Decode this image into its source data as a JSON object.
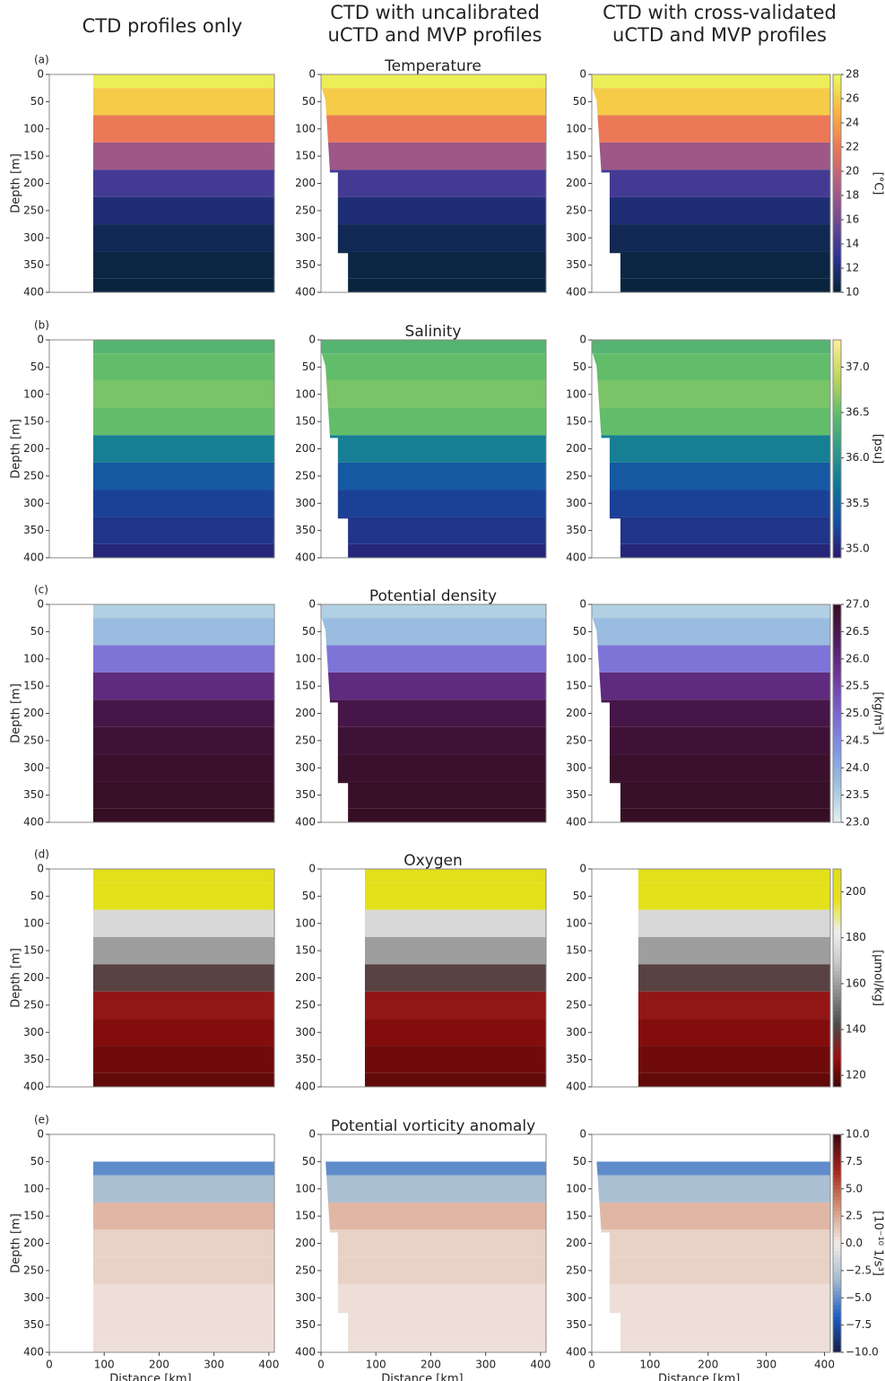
{
  "column_titles": [
    "CTD profiles only",
    "CTD with uncalibrated uCTD and MVP profiles",
    "CTD with cross-validated uCTD and MVP profiles"
  ],
  "chart_data": [
    {
      "type": "heatmap",
      "panel_label": "(a)",
      "title": "Temperature",
      "ylabel": "Depth [m]",
      "colorbar_label": "[°C]",
      "xlim": [
        0,
        410
      ],
      "xticks": [
        0,
        100,
        200,
        300,
        400
      ],
      "ylim": [
        0,
        400
      ],
      "yticks": [
        0,
        50,
        100,
        150,
        200,
        250,
        300,
        350,
        400
      ],
      "clim": [
        10,
        28
      ],
      "cticks": [
        10,
        12,
        14,
        16,
        18,
        20,
        22,
        24,
        26,
        28
      ],
      "colors": [
        "#042333",
        "#2c3395",
        "#744992",
        "#b15f82",
        "#eb7958",
        "#fbb43d",
        "#e8fa5b"
      ],
      "depths": [
        0,
        50,
        100,
        150,
        200,
        250,
        300,
        350,
        400
      ],
      "values": [
        27.5,
        26,
        22,
        18,
        14,
        12,
        11,
        10.5,
        10.3
      ]
    },
    {
      "type": "heatmap",
      "panel_label": "(b)",
      "title": "Salinity",
      "ylabel": "Depth [m]",
      "colorbar_label": "[psu]",
      "xlim": [
        0,
        410
      ],
      "xticks": [
        0,
        100,
        200,
        300,
        400
      ],
      "ylim": [
        0,
        400
      ],
      "yticks": [
        0,
        50,
        100,
        150,
        200,
        250,
        300,
        350,
        400
      ],
      "clim": [
        34.9,
        37.3
      ],
      "cticks": [
        {
          "value": 35.0,
          "label": "35.0"
        },
        35.5,
        {
          "value": 36.0,
          "label": "36.0"
        },
        36.5,
        {
          "value": 37.0,
          "label": "37.0"
        }
      ],
      "colors": [
        "#2a186c",
        "#164fa5",
        "#0f7696",
        "#319a8b",
        "#62bd6a",
        "#c1d65c",
        "#fdee99"
      ],
      "depths": [
        0,
        50,
        100,
        150,
        200,
        250,
        300,
        350,
        400
      ],
      "values": [
        36.4,
        36.5,
        36.6,
        36.5,
        35.8,
        35.4,
        35.2,
        35.1,
        35.0
      ]
    },
    {
      "type": "heatmap",
      "panel_label": "(c)",
      "title": "Potential density",
      "ylabel": "Depth [m]",
      "colorbar_label": "[kg/m³]",
      "xlim": [
        0,
        410
      ],
      "xticks": [
        0,
        100,
        200,
        300,
        400
      ],
      "ylim": [
        0,
        400
      ],
      "yticks": [
        0,
        50,
        100,
        150,
        200,
        250,
        300,
        350,
        400
      ],
      "clim": [
        23,
        27
      ],
      "cticks": [
        {
          "value": 23,
          "label": "23.0"
        },
        23.5,
        {
          "value": 24,
          "label": "24.0"
        },
        24.5,
        {
          "value": 25,
          "label": "25.0"
        },
        25.5,
        {
          "value": 26,
          "label": "26.0"
        },
        26.5,
        {
          "value": 27,
          "label": "27.0"
        }
      ],
      "colors": [
        "#e6f1f1",
        "#a0c5de",
        "#7e96e6",
        "#7d65d1",
        "#6f3a9e",
        "#4f1c5f",
        "#360e24"
      ],
      "depths": [
        0,
        50,
        100,
        150,
        200,
        250,
        300,
        350,
        400
      ],
      "values": [
        23.5,
        23.8,
        24.8,
        26.0,
        26.6,
        26.8,
        26.9,
        26.95,
        27.0
      ]
    },
    {
      "type": "heatmap",
      "panel_label": "(d)",
      "title": "Oxygen",
      "ylabel": "Depth [m]",
      "colorbar_label": "[µmol/kg]",
      "xlim": [
        0,
        410
      ],
      "xticks": [
        0,
        100,
        200,
        300,
        400
      ],
      "ylim": [
        0,
        400
      ],
      "yticks": [
        0,
        50,
        100,
        150,
        200,
        250,
        300,
        350,
        400
      ],
      "clim": [
        115,
        210
      ],
      "cticks": [
        120,
        140,
        160,
        180,
        200
      ],
      "colors": [
        "#400505",
        "#9b1010",
        "#4a4a4a",
        "#8a8a8a",
        "#c8c8c8",
        "#eeeeee",
        "#e8e21e",
        "#dede1a"
      ],
      "depths": [
        0,
        50,
        100,
        150,
        200,
        250,
        300,
        350,
        400
      ],
      "values": [
        205,
        203,
        175,
        160,
        140,
        130,
        125,
        122,
        120
      ]
    },
    {
      "type": "heatmap",
      "panel_label": "(e)",
      "title": "Potential vorticity anomaly",
      "ylabel": "Depth [m]",
      "xlabel": "Distance [km]",
      "colorbar_label": "[10⁻¹⁰ 1/s³]",
      "xlim": [
        0,
        410
      ],
      "xticks": [
        0,
        100,
        200,
        300,
        400
      ],
      "ylim": [
        0,
        400
      ],
      "yticks": [
        0,
        50,
        100,
        150,
        200,
        250,
        300,
        350,
        400
      ],
      "clim": [
        -10,
        10
      ],
      "cticks": [
        {
          "value": -10,
          "label": "−10.0"
        },
        {
          "value": -7.5,
          "label": "−7.5"
        },
        {
          "value": -5,
          "label": "−5.0"
        },
        {
          "value": -2.5,
          "label": "−2.5"
        },
        {
          "value": 0,
          "label": "0.0"
        },
        2.5,
        {
          "value": 5,
          "label": "5.0"
        },
        7.5,
        {
          "value": 10,
          "label": "10.0"
        }
      ],
      "colors": [
        "#181c43",
        "#1c5ec8",
        "#a3bacf",
        "#f1ece9",
        "#d49478",
        "#a8251b",
        "#3c0912"
      ],
      "depths": [
        50,
        100,
        150,
        200,
        250,
        300,
        350,
        400
      ],
      "values": [
        -5,
        -3,
        2,
        1,
        1,
        0.5,
        0.5,
        0.5
      ]
    }
  ]
}
